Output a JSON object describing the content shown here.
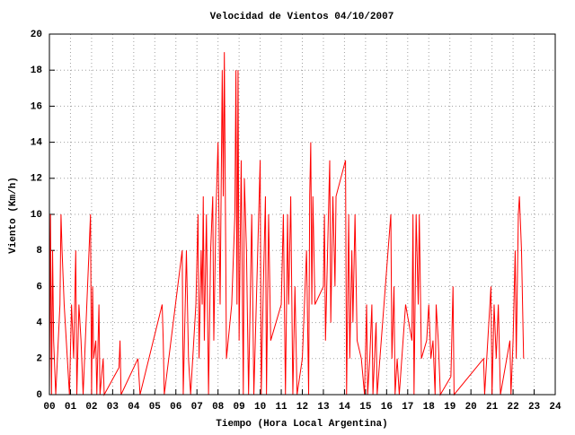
{
  "chart_data": {
    "type": "line",
    "title": "Velocidad de Vientos 04/10/2007",
    "xlabel": "Tiempo (Hora Local Argentina)",
    "ylabel": "Viento (Km/h)",
    "xlim": [
      0,
      24
    ],
    "xticks": [
      {
        "value": 0,
        "label": "00"
      },
      {
        "value": 1,
        "label": "01"
      },
      {
        "value": 2,
        "label": "02"
      },
      {
        "value": 3,
        "label": "03"
      },
      {
        "value": 4,
        "label": "04"
      },
      {
        "value": 5,
        "label": "05"
      },
      {
        "value": 6,
        "label": "06"
      },
      {
        "value": 7,
        "label": "07"
      },
      {
        "value": 8,
        "label": "08"
      },
      {
        "value": 9,
        "label": "09"
      },
      {
        "value": 10,
        "label": "10"
      },
      {
        "value": 11,
        "label": "11"
      },
      {
        "value": 12,
        "label": "12"
      },
      {
        "value": 13,
        "label": "13"
      },
      {
        "value": 14,
        "label": "14"
      },
      {
        "value": 15,
        "label": "15"
      },
      {
        "value": 16,
        "label": "16"
      },
      {
        "value": 17,
        "label": "17"
      },
      {
        "value": 18,
        "label": "18"
      },
      {
        "value": 19,
        "label": "19"
      },
      {
        "value": 20,
        "label": "20"
      },
      {
        "value": 21,
        "label": "21"
      },
      {
        "value": 22,
        "label": "22"
      },
      {
        "value": 23,
        "label": "23"
      },
      {
        "value": 24,
        "label": "24"
      }
    ],
    "ylim": [
      0,
      20
    ],
    "yticks": [
      0,
      2,
      4,
      6,
      8,
      10,
      12,
      14,
      16,
      18,
      20
    ],
    "grid": true,
    "color": "#ff0000",
    "x": [
      0,
      0.05,
      0.1,
      0.15,
      0.2,
      0.3,
      0.5,
      0.55,
      0.6,
      0.7,
      0.8,
      0.95,
      1.05,
      1.15,
      1.25,
      1.3,
      1.4,
      1.5,
      1.6,
      1.95,
      2.0,
      2.05,
      2.1,
      2.2,
      2.25,
      2.35,
      2.4,
      2.55,
      2.6,
      3.3,
      3.35,
      3.4,
      4.2,
      4.3,
      5.35,
      5.4,
      5.45,
      6.3,
      6.35,
      6.5,
      6.6,
      6.7,
      6.95,
      7.05,
      7.1,
      7.2,
      7.25,
      7.3,
      7.35,
      7.45,
      7.55,
      7.65,
      7.75,
      7.8,
      7.9,
      8.0,
      8.1,
      8.2,
      8.25,
      8.3,
      8.4,
      8.65,
      8.8,
      8.85,
      8.9,
      8.95,
      9.0,
      9.1,
      9.2,
      9.25,
      9.35,
      9.45,
      9.6,
      9.7,
      10.0,
      10.05,
      10.15,
      10.25,
      10.3,
      10.4,
      10.5,
      11.0,
      11.1,
      11.2,
      11.3,
      11.35,
      11.45,
      11.55,
      11.65,
      11.75,
      12.0,
      12.2,
      12.3,
      12.35,
      12.4,
      12.45,
      12.5,
      12.6,
      13.0,
      13.05,
      13.1,
      13.2,
      13.3,
      13.35,
      13.45,
      13.55,
      13.6,
      14.05,
      14.1,
      14.2,
      14.25,
      14.35,
      14.4,
      14.5,
      14.6,
      14.8,
      14.95,
      15.05,
      15.1,
      15.2,
      15.3,
      15.35,
      15.5,
      15.55,
      16.2,
      16.25,
      16.35,
      16.4,
      16.5,
      16.6,
      16.9,
      17.2,
      17.25,
      17.3,
      17.4,
      17.5,
      17.55,
      17.65,
      17.9,
      18.0,
      18.1,
      18.2,
      18.3,
      18.35,
      18.45,
      18.55,
      19.05,
      19.15,
      19.2,
      20.6,
      20.65,
      20.95,
      21.0,
      21.1,
      21.2,
      21.3,
      21.4,
      21.85,
      21.9,
      22.0,
      22.1,
      22.15,
      22.25,
      22.3,
      22.4,
      22.5
    ],
    "values": [
      0,
      10,
      0,
      8,
      3,
      0,
      5,
      10,
      8,
      5,
      3,
      0,
      5,
      2,
      8,
      0,
      5,
      3,
      0,
      10,
      0,
      6,
      2,
      3,
      0,
      5,
      0,
      2,
      0,
      1.5,
      3,
      0,
      2,
      0,
      5,
      3,
      0,
      8,
      0,
      8,
      2,
      0,
      5,
      10,
      2,
      8,
      5,
      11,
      3,
      10,
      0,
      8,
      11,
      3,
      10,
      14,
      5,
      18,
      11,
      19,
      2,
      5,
      10,
      18,
      5,
      18,
      3,
      13,
      0,
      12,
      8,
      0,
      10,
      0,
      13,
      0,
      6,
      11,
      0,
      10,
      3,
      5,
      10,
      0,
      10,
      5,
      11,
      0,
      6,
      0,
      2,
      8,
      0,
      11,
      14,
      5,
      11,
      5,
      6,
      10,
      3,
      8,
      13,
      4,
      11,
      6,
      11,
      13,
      0,
      10,
      2,
      8,
      4,
      10,
      3,
      2,
      0,
      5,
      0,
      2,
      5,
      0,
      4,
      0,
      10,
      2,
      6,
      0,
      2,
      0,
      5,
      3,
      10,
      0,
      10,
      5,
      10,
      2,
      3,
      5,
      2,
      3,
      0,
      5,
      3,
      0,
      1,
      6,
      0,
      2,
      0,
      6,
      0,
      5,
      2,
      5,
      0,
      3,
      0,
      3,
      8,
      2,
      10,
      11,
      8,
      2
    ]
  }
}
